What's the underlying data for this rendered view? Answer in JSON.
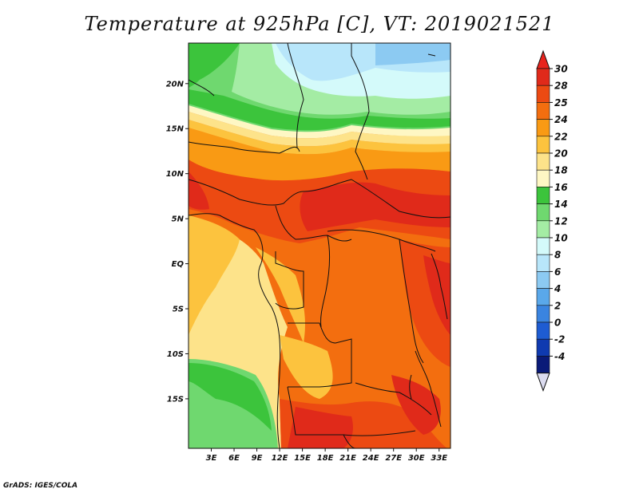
{
  "title": "Temperature at 925hPa [C], VT: 2019021521",
  "credit": "GrADS: IGES/COLA",
  "map": {
    "lat_range": [
      -20.5,
      24.5
    ],
    "lon_range": [
      0,
      34.5
    ],
    "lat_ticks": [
      {
        "value": 20,
        "label": "20N"
      },
      {
        "value": 15,
        "label": "15N"
      },
      {
        "value": 10,
        "label": "10N"
      },
      {
        "value": 5,
        "label": "5N"
      },
      {
        "value": 0,
        "label": "EQ"
      },
      {
        "value": -5,
        "label": "5S"
      },
      {
        "value": -10,
        "label": "10S"
      },
      {
        "value": -15,
        "label": "15S"
      }
    ],
    "lon_ticks": [
      {
        "value": 3,
        "label": "3E"
      },
      {
        "value": 6,
        "label": "6E"
      },
      {
        "value": 9,
        "label": "9E"
      },
      {
        "value": 12,
        "label": "12E"
      },
      {
        "value": 15,
        "label": "15E"
      },
      {
        "value": 18,
        "label": "18E"
      },
      {
        "value": 21,
        "label": "21E"
      },
      {
        "value": 24,
        "label": "24E"
      },
      {
        "value": 27,
        "label": "27E"
      },
      {
        "value": 30,
        "label": "30E"
      },
      {
        "value": 33,
        "label": "33E"
      }
    ]
  },
  "colorbar": {
    "labels": [
      "30",
      "28",
      "25",
      "24",
      "22",
      "20",
      "18",
      "16",
      "14",
      "12",
      "10",
      "8",
      "6",
      "4",
      "2",
      "0",
      "-2",
      "-4"
    ],
    "top_triangle_color": "#e8231d",
    "bottom_triangle_color": "#dcdcf0",
    "colors": [
      "#e02a1a",
      "#ec4a12",
      "#f36e0f",
      "#f99a14",
      "#fcc33e",
      "#fde38a",
      "#fef7c4",
      "#3cc43c",
      "#6fd86f",
      "#a4eca4",
      "#d4fafa",
      "#b8e6fa",
      "#8ccaf2",
      "#5aa8ea",
      "#3a84e0",
      "#1e5cd2",
      "#0f3ab0",
      "#0a1a78"
    ]
  }
}
